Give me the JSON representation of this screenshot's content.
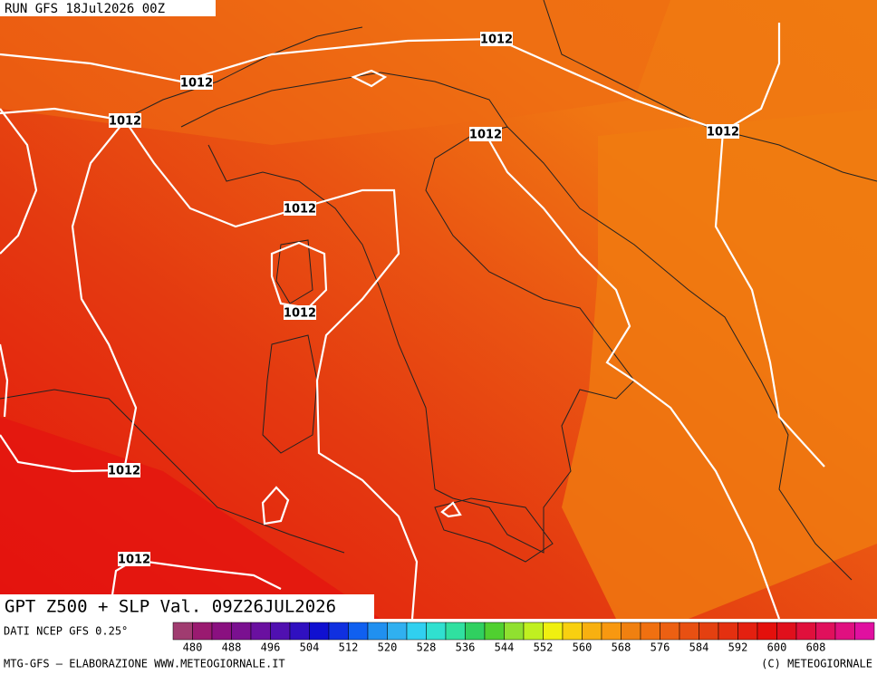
{
  "header": {
    "run": "RUN GFS 18Jul2026 00Z"
  },
  "isobar_labels": [
    "1012",
    "1012",
    "1012",
    "1012",
    "1012",
    "1012",
    "1012",
    "1012",
    "1012"
  ],
  "footer": {
    "title": "GPT Z500 + SLP Val. 09Z26JUL2026",
    "source": "DATI NCEP GFS 0.25°",
    "credit_left": "MTG-GFS – ELABORAZIONE WWW.METEOGIORNALE.IT",
    "credit_right": "(C) METEOGIORNALE"
  },
  "colorbar": {
    "ticks": [
      480,
      488,
      496,
      504,
      512,
      520,
      528,
      536,
      544,
      552,
      560,
      568,
      576,
      584,
      592,
      600,
      608
    ]
  }
}
